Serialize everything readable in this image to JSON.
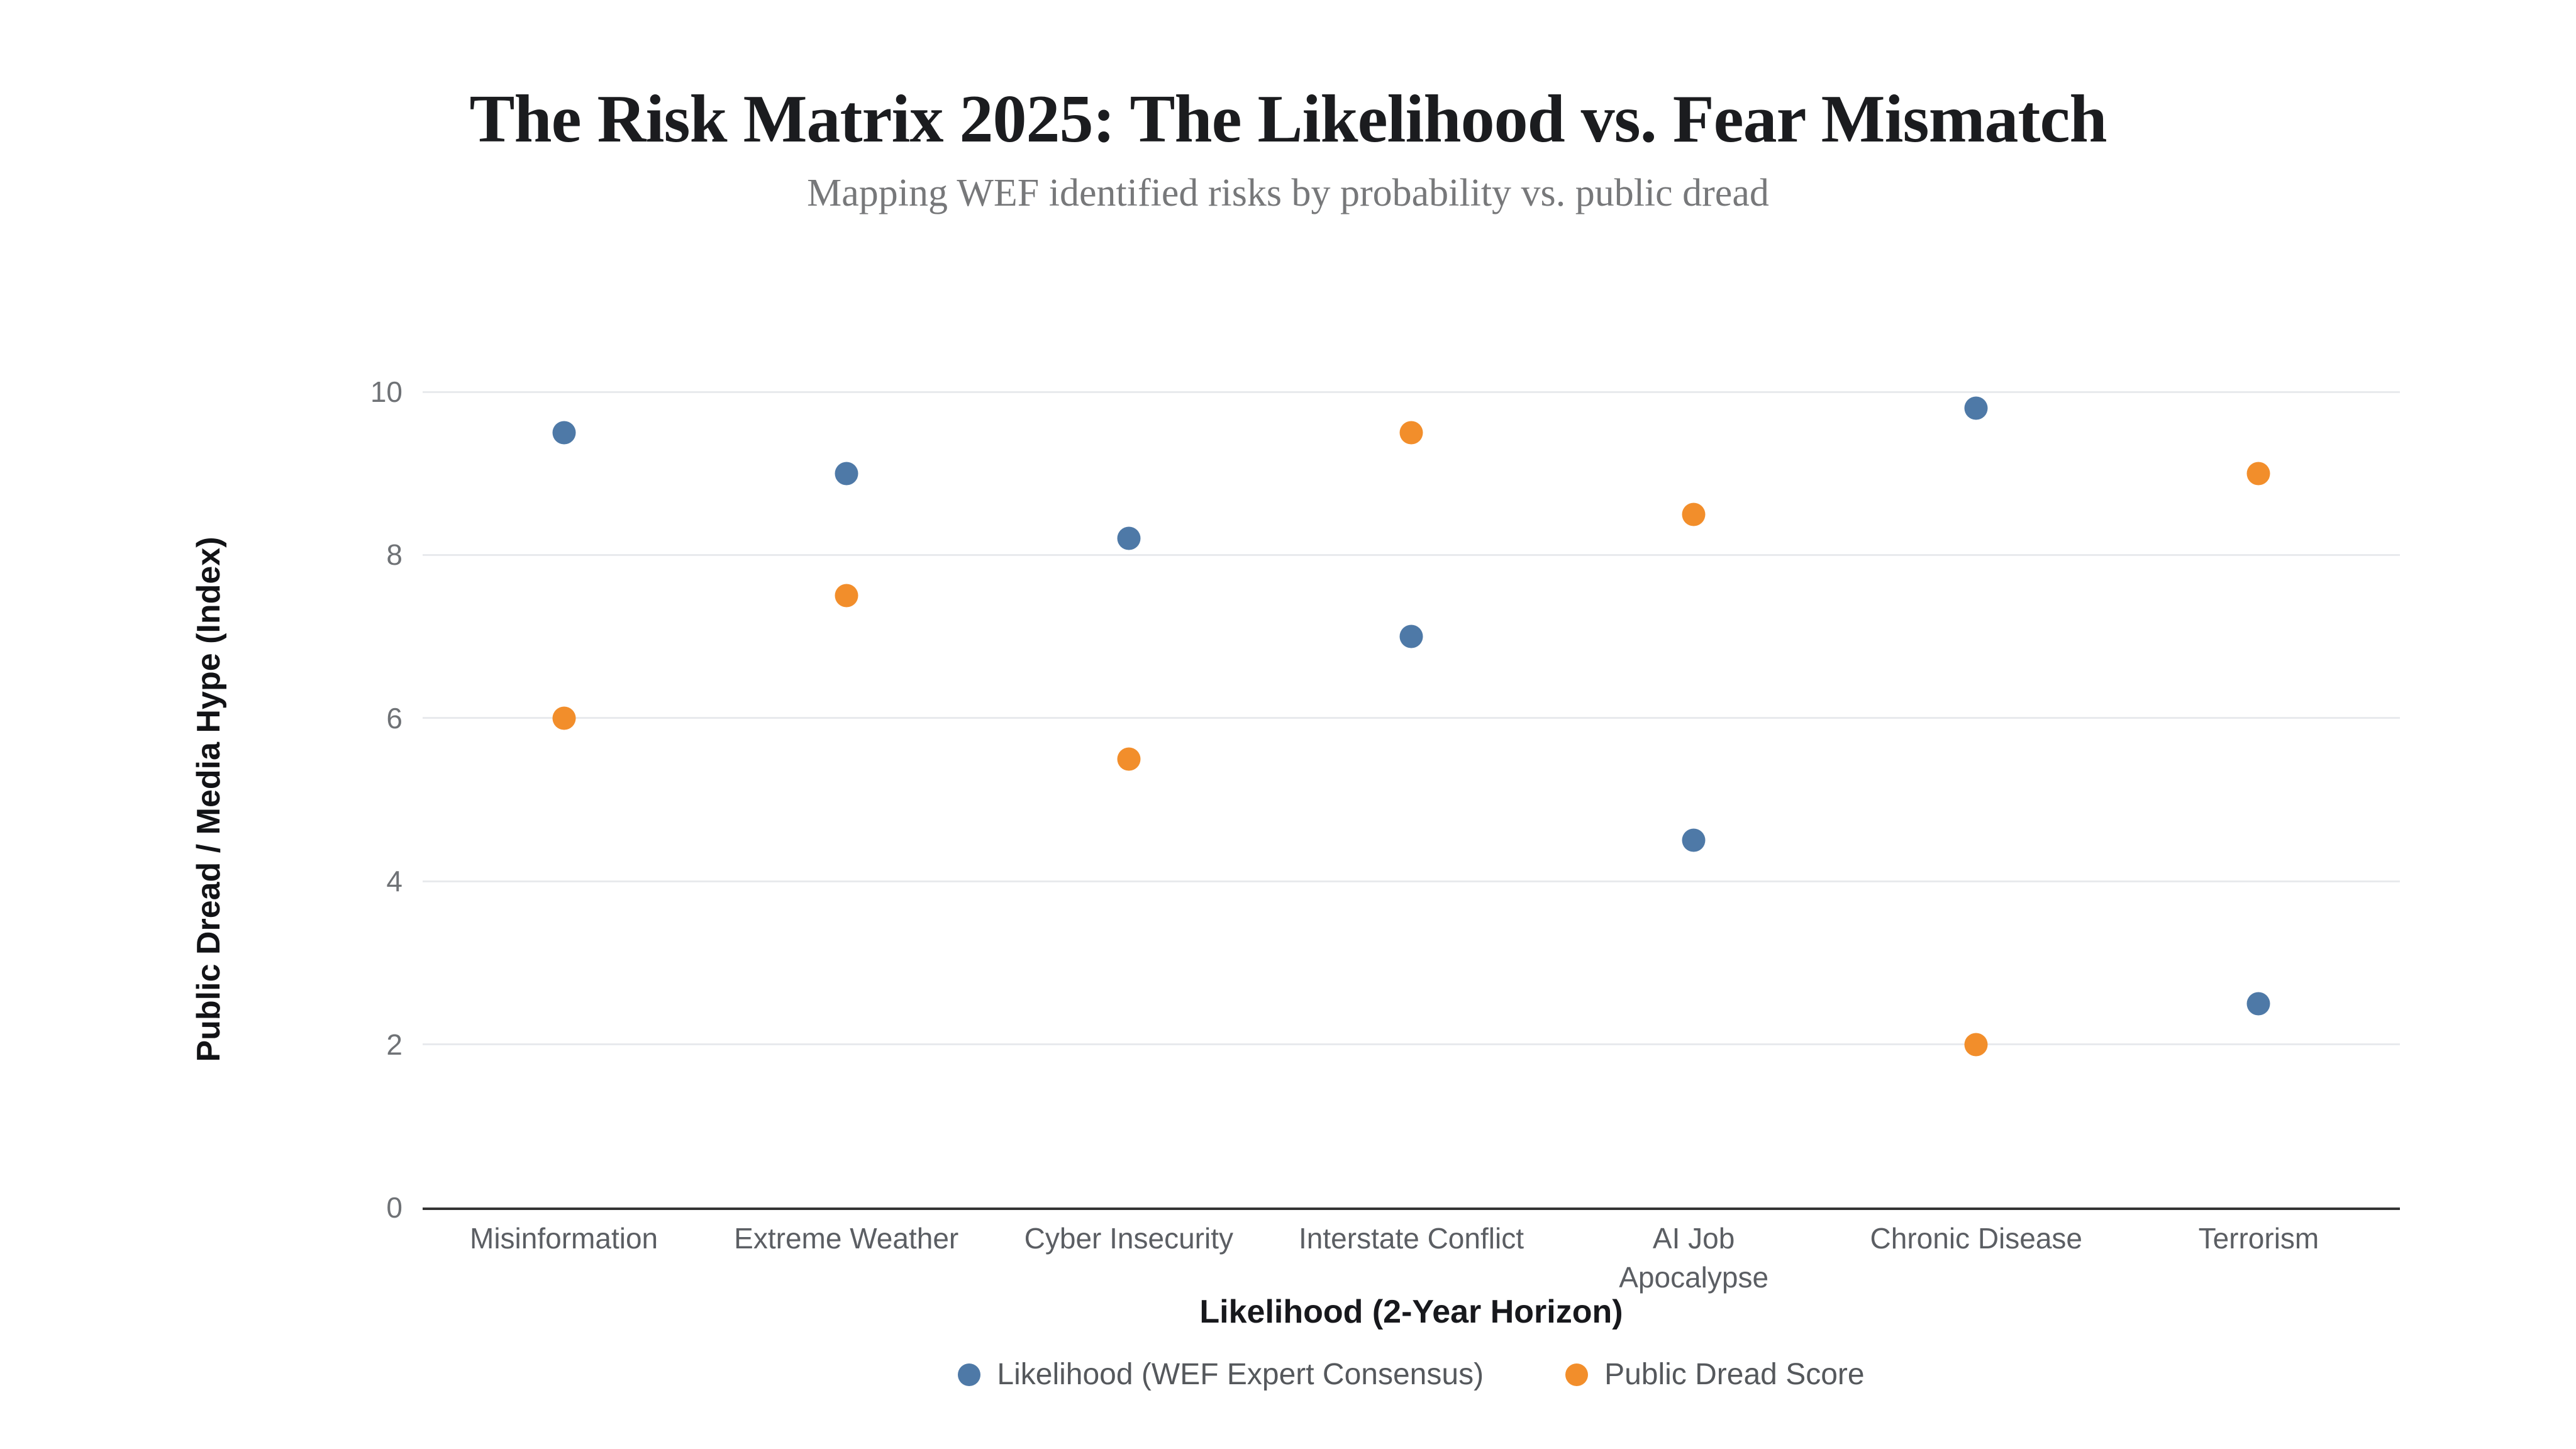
{
  "header": {
    "title": "The Risk Matrix 2025: The Likelihood vs. Fear Mismatch",
    "subtitle": "Mapping WEF identified risks by probability vs. public dread"
  },
  "chart_data": {
    "type": "scatter",
    "title": "The Risk Matrix 2025: The Likelihood vs. Fear Mismatch",
    "subtitle": "Mapping WEF identified risks by probability vs. public dread",
    "categories": [
      "Misinformation",
      "Extreme Weather",
      "Cyber Insecurity",
      "Interstate Conflict",
      "AI Job Apocalypse",
      "Chronic Disease",
      "Terrorism"
    ],
    "category_label_lines": [
      [
        "Misinformation"
      ],
      [
        "Extreme Weather"
      ],
      [
        "Cyber Insecurity"
      ],
      [
        "Interstate Conflict"
      ],
      [
        "AI Job",
        "Apocalypse"
      ],
      [
        "Chronic Disease"
      ],
      [
        "Terrorism"
      ]
    ],
    "series": [
      {
        "name": "Likelihood (WEF Expert Consensus)",
        "color": "#4e79a7",
        "values": [
          9.5,
          9.0,
          8.2,
          7.0,
          4.5,
          9.8,
          2.5
        ]
      },
      {
        "name": "Public Dread Score",
        "color": "#f28e2b",
        "values": [
          6.0,
          7.5,
          5.5,
          9.5,
          8.5,
          2.0,
          9.0
        ]
      }
    ],
    "xlabel": "Likelihood (2-Year Horizon)",
    "ylabel": "Public Dread / Media Hype (Index)",
    "ylim": [
      0,
      10
    ],
    "yticks": [
      0,
      2,
      4,
      6,
      8,
      10
    ],
    "grid": true,
    "legend_position": "bottom",
    "style": {
      "background": "#ffffff",
      "grid_color": "#e8eaed",
      "axis_line_color": "#333333",
      "tick_label_color": "#6f7276",
      "category_label_color": "#5b5e63",
      "title_color": "#1b1c1f",
      "subtitle_color": "#77787a",
      "axis_title_color": "#17181c",
      "legend_text_color": "#55585c"
    }
  }
}
